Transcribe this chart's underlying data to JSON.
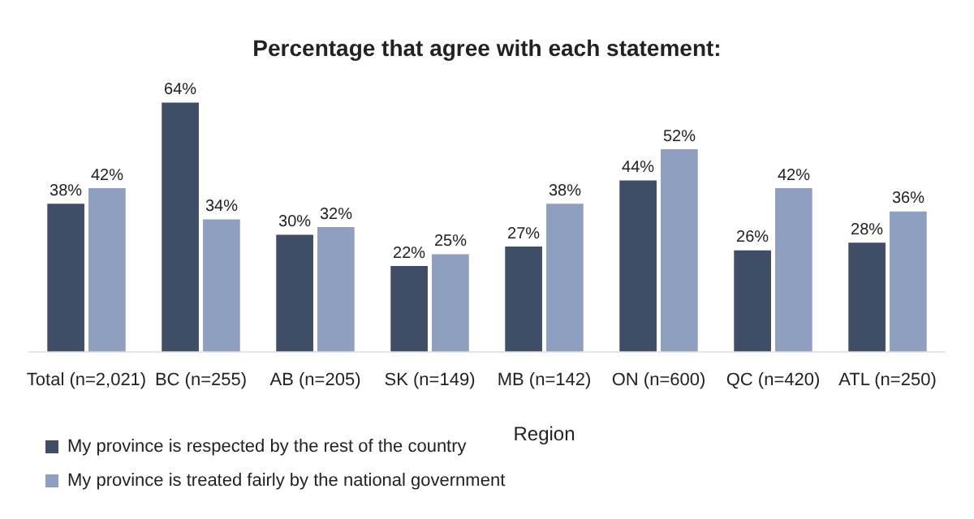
{
  "chart_data": {
    "type": "bar",
    "title": "Percentage that agree with each statement:",
    "categories": [
      "Total (n=2,021)",
      "BC (n=255)",
      "AB (n=205)",
      "SK (n=149)",
      "MB (n=142)",
      "ON (n=600)",
      "QC (n=420)",
      "ATL (n=250)"
    ],
    "series": [
      {
        "name": "My province is respected by the rest of the country",
        "color": "#3f4d66",
        "values": [
          38,
          64,
          30,
          22,
          27,
          44,
          26,
          28
        ],
        "value_labels": [
          "38%",
          "64%",
          "30%",
          "22%",
          "27%",
          "44%",
          "26%",
          "28%"
        ]
      },
      {
        "name": "My province is treated fairly by the national government",
        "color": "#8e9fbf",
        "values": [
          42,
          34,
          32,
          25,
          38,
          52,
          42,
          36
        ],
        "value_labels": [
          "42%",
          "34%",
          "32%",
          "25%",
          "38%",
          "52%",
          "42%",
          "36%"
        ]
      }
    ],
    "annotations": [
      "Region"
    ],
    "legend": "bottom",
    "grid": false
  }
}
